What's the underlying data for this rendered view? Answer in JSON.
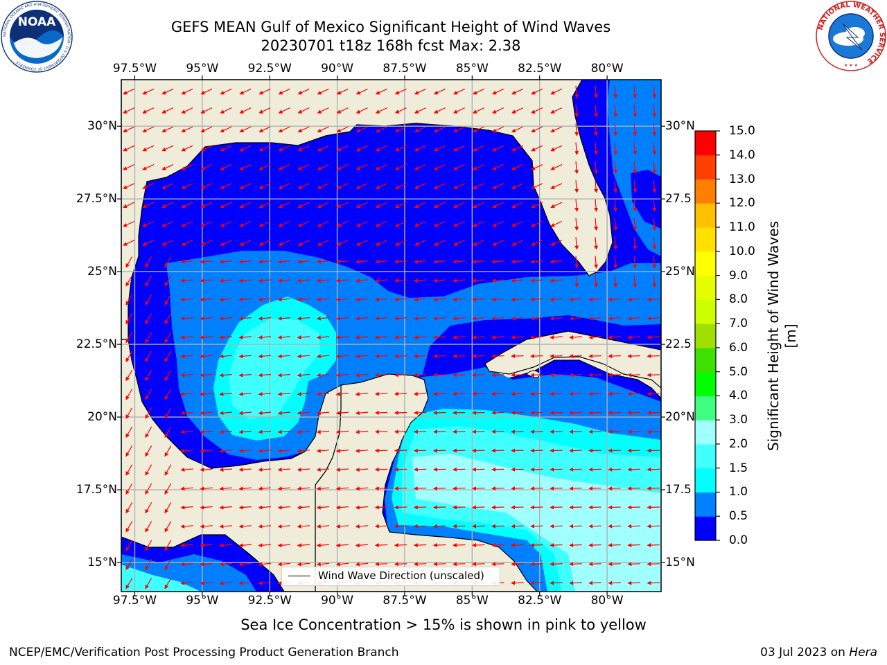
{
  "title": {
    "line1": "GEFS MEAN Gulf of Mexico Significant Height of Wind Waves",
    "line2": "20230701 t18z 168h fcst   Max: 2.38"
  },
  "map": {
    "lon_range": [
      -98,
      -78
    ],
    "lat_range": [
      14,
      31.6
    ],
    "lon_ticks": [
      {
        "value": -97.5,
        "label": "97.5°W"
      },
      {
        "value": -95,
        "label": "95°W"
      },
      {
        "value": -92.5,
        "label": "92.5°W"
      },
      {
        "value": -90,
        "label": "90°W"
      },
      {
        "value": -87.5,
        "label": "87.5°W"
      },
      {
        "value": -85,
        "label": "85°W"
      },
      {
        "value": -82.5,
        "label": "82.5°W"
      },
      {
        "value": -80,
        "label": "80°W"
      }
    ],
    "lat_ticks": [
      {
        "value": 30,
        "label": "30°N"
      },
      {
        "value": 27.5,
        "label": "27.5°N"
      },
      {
        "value": 25,
        "label": "25°N"
      },
      {
        "value": 22.5,
        "label": "22.5°N"
      },
      {
        "value": 20,
        "label": "20°N"
      },
      {
        "value": 17.5,
        "label": "17.5°N"
      },
      {
        "value": 15,
        "label": "15°N"
      }
    ],
    "right_lat_ticks": [
      {
        "value": 30,
        "label": "30°N"
      },
      {
        "value": 27.5,
        "label": "27.5"
      },
      {
        "value": 25,
        "label": "25°N"
      },
      {
        "value": 22.5,
        "label": "22.5"
      },
      {
        "value": 20,
        "label": "20°N"
      },
      {
        "value": 17.5,
        "label": "17.5"
      },
      {
        "value": 15,
        "label": "15°N"
      }
    ],
    "land_color": "#efedda",
    "arrow_color": "#ff0000",
    "gridlines": true
  },
  "colorbar": {
    "label": "Significant Height of Wind Waves [m]",
    "levels": [
      0.0,
      0.5,
      1.0,
      1.5,
      2.0,
      3.0,
      4.0,
      5.0,
      6.0,
      7.0,
      8.0,
      9.0,
      10.0,
      11.0,
      12.0,
      13.0,
      14.0,
      15.0
    ],
    "tick_labels": [
      "0.0",
      "0.5",
      "1.0",
      "1.5",
      "2.0",
      "3.0",
      "4.0",
      "5.0",
      "6.0",
      "7.0",
      "8.0",
      "9.0",
      "10.0",
      "11.0",
      "12.0",
      "13.0",
      "14.0",
      "15.0"
    ],
    "colors": [
      "#0000ff",
      "#0080ff",
      "#00ffff",
      "#40ffff",
      "#a0ffff",
      "#40ff80",
      "#00ff00",
      "#40e000",
      "#a0e000",
      "#ccff00",
      "#e6ff00",
      "#ffff00",
      "#ffe000",
      "#ffc000",
      "#ff8000",
      "#ff4000",
      "#ff0000"
    ]
  },
  "legend": {
    "label": "Wind Wave Direction (unscaled)"
  },
  "footer": {
    "note": "Sea Ice Concentration > 15% is shown in pink to yellow",
    "left": "NCEP/EMC/Verification Post Processing Product Generation Branch",
    "date": "03 Jul 2023",
    "on": "on",
    "machine": "Hera"
  },
  "logos": {
    "noaa": {
      "text": "NOAA",
      "ring_text": "NATIONAL OCEANIC AND ATMOSPHERIC ADMINISTRATION · U.S. DEPARTMENT OF COMMERCE",
      "icon": "noaa-logo-icon"
    },
    "nws": {
      "ring_text": "NATIONAL WEATHER SERVICE",
      "icon": "nws-logo-icon"
    }
  }
}
